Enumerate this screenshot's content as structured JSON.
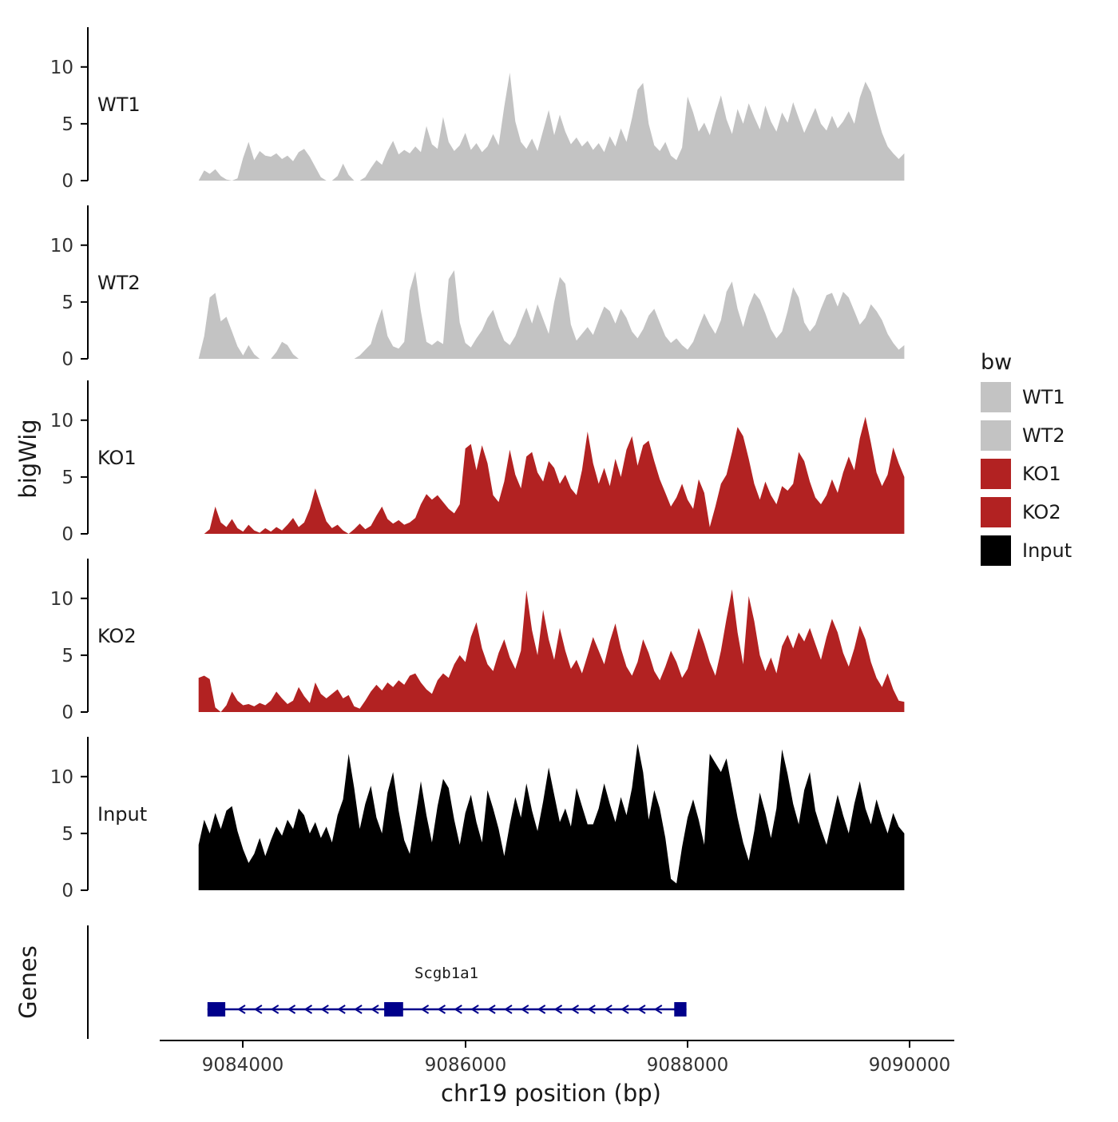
{
  "figure": {
    "x_axis_title": "chr19 position (bp)",
    "y_axis_title": "bigWig",
    "genes_axis_title": "Genes",
    "x_tick_labels": [
      "9084000",
      "9086000",
      "9088000",
      "9090000"
    ],
    "y_tick_labels": [
      "0",
      "5",
      "10"
    ]
  },
  "legend": {
    "title": "bw",
    "items": [
      {
        "label": "WT1",
        "color": "#C3C3C3"
      },
      {
        "label": "WT2",
        "color": "#C3C3C3"
      },
      {
        "label": "KO1",
        "color": "#B22222"
      },
      {
        "label": "KO2",
        "color": "#B22222"
      },
      {
        "label": "Input",
        "color": "#000000"
      }
    ]
  },
  "gene": {
    "name": "Scgb1a1",
    "color": "#00008B",
    "strand": "-",
    "start": 9083680,
    "end": 9087990,
    "exons": [
      [
        9083680,
        9083840
      ],
      [
        9085270,
        9085440
      ],
      [
        9087880,
        9087990
      ]
    ]
  },
  "chart_data": {
    "type": "area",
    "title": "",
    "xlabel": "chr19 position (bp)",
    "ylabel": "bigWig",
    "xlim": [
      9083250,
      9090400
    ],
    "x_tick_values": [
      9084000,
      9086000,
      9088000,
      9090000
    ],
    "ylim": [
      0,
      13.5
    ],
    "y_tick_values": [
      0,
      5,
      10
    ],
    "x_start": 9083600,
    "x_step": 50,
    "series": [
      {
        "name": "WT1",
        "color": "#C3C3C3",
        "values": [
          0,
          0.9,
          0.6,
          1.0,
          0.4,
          0.1,
          0,
          0.2,
          2.0,
          3.4,
          1.8,
          2.6,
          2.2,
          2.1,
          2.4,
          1.9,
          2.2,
          1.7,
          2.5,
          2.8,
          2.1,
          1.2,
          0.3,
          0,
          0,
          0.4,
          1.5,
          0.5,
          0,
          0,
          0.3,
          1.1,
          1.8,
          1.4,
          2.6,
          3.5,
          2.3,
          2.7,
          2.4,
          3.0,
          2.5,
          4.8,
          3.2,
          2.8,
          5.6,
          3.4,
          2.6,
          3.1,
          4.2,
          2.7,
          3.3,
          2.5,
          3.0,
          4.1,
          3.1,
          6.5,
          9.5,
          5.2,
          3.4,
          2.8,
          3.7,
          2.6,
          4.4,
          6.2,
          4.0,
          5.8,
          4.3,
          3.2,
          3.8,
          3.0,
          3.5,
          2.7,
          3.3,
          2.5,
          3.9,
          3.0,
          4.6,
          3.4,
          5.5,
          8.0,
          8.6,
          5.0,
          3.1,
          2.6,
          3.4,
          2.2,
          1.8,
          2.9,
          7.4,
          6.0,
          4.3,
          5.1,
          4.0,
          5.9,
          7.5,
          5.4,
          4.1,
          6.3,
          5.0,
          6.8,
          5.6,
          4.5,
          6.6,
          5.2,
          4.3,
          6.0,
          5.1,
          6.9,
          5.5,
          4.2,
          5.3,
          6.4,
          5.0,
          4.4,
          5.7,
          4.6,
          5.2,
          6.1,
          5.0,
          7.3,
          8.7,
          7.8,
          5.9,
          4.2,
          3.0,
          2.4,
          1.9,
          2.4
        ]
      },
      {
        "name": "WT2",
        "color": "#C3C3C3",
        "values": [
          0,
          2.0,
          5.4,
          5.8,
          3.3,
          3.7,
          2.4,
          1.1,
          0.3,
          1.2,
          0.4,
          0,
          0,
          0,
          0.6,
          1.5,
          1.2,
          0.4,
          0,
          0,
          0,
          0,
          0,
          0,
          0,
          0,
          0,
          0,
          0,
          0.3,
          0.8,
          1.3,
          3.0,
          4.4,
          2.0,
          1.1,
          0.9,
          1.5,
          6.0,
          7.7,
          4.2,
          1.5,
          1.2,
          1.6,
          1.3,
          7.0,
          7.8,
          3.2,
          1.4,
          1.0,
          1.8,
          2.5,
          3.6,
          4.3,
          2.8,
          1.6,
          1.2,
          2.0,
          3.3,
          4.5,
          3.1,
          4.8,
          3.5,
          2.2,
          5.0,
          7.2,
          6.6,
          3.0,
          1.6,
          2.2,
          2.8,
          2.1,
          3.4,
          4.6,
          4.2,
          3.1,
          4.4,
          3.6,
          2.4,
          1.8,
          2.6,
          3.8,
          4.4,
          3.2,
          2.0,
          1.4,
          1.8,
          1.2,
          0.8,
          1.5,
          2.8,
          4.0,
          3.0,
          2.2,
          3.4,
          5.9,
          6.8,
          4.4,
          2.8,
          4.6,
          5.8,
          5.2,
          4.0,
          2.6,
          1.8,
          2.4,
          4.2,
          6.3,
          5.4,
          3.2,
          2.4,
          3.0,
          4.4,
          5.6,
          5.8,
          4.6,
          5.9,
          5.4,
          4.2,
          3.0,
          3.6,
          4.8,
          4.2,
          3.4,
          2.2,
          1.4,
          0.8,
          1.2
        ]
      },
      {
        "name": "KO1",
        "color": "#B22222",
        "values": [
          0,
          0,
          0.4,
          2.4,
          1.0,
          0.6,
          1.3,
          0.5,
          0.2,
          0.8,
          0.3,
          0.1,
          0.5,
          0.2,
          0.6,
          0.3,
          0.8,
          1.4,
          0.6,
          1.0,
          2.2,
          4.0,
          2.5,
          1.1,
          0.5,
          0.8,
          0.3,
          0,
          0.4,
          0.9,
          0.4,
          0.7,
          1.6,
          2.4,
          1.3,
          0.9,
          1.2,
          0.8,
          1.0,
          1.4,
          2.6,
          3.5,
          3.0,
          3.4,
          2.8,
          2.2,
          1.8,
          2.6,
          7.5,
          7.9,
          5.6,
          7.8,
          6.2,
          3.4,
          2.8,
          4.6,
          7.4,
          5.2,
          4.0,
          6.8,
          7.2,
          5.4,
          4.6,
          6.4,
          5.8,
          4.4,
          5.2,
          4.0,
          3.4,
          5.6,
          9.0,
          6.2,
          4.4,
          5.8,
          4.2,
          6.6,
          5.0,
          7.4,
          8.6,
          6.0,
          7.8,
          8.2,
          6.4,
          4.8,
          3.6,
          2.4,
          3.2,
          4.4,
          3.0,
          2.2,
          4.8,
          3.6,
          0.6,
          2.4,
          4.4,
          5.2,
          7.2,
          9.4,
          8.6,
          6.6,
          4.4,
          3.0,
          4.6,
          3.4,
          2.6,
          4.2,
          3.8,
          4.4,
          7.2,
          6.4,
          4.6,
          3.2,
          2.6,
          3.4,
          4.8,
          3.6,
          5.4,
          6.8,
          5.6,
          8.4,
          10.3,
          8.0,
          5.4,
          4.2,
          5.2,
          7.6,
          6.2,
          5.0
        ]
      },
      {
        "name": "KO2",
        "color": "#B22222",
        "values": [
          3.0,
          3.2,
          2.9,
          0.4,
          0,
          0.6,
          1.8,
          1.0,
          0.6,
          0.7,
          0.5,
          0.8,
          0.6,
          1.0,
          1.8,
          1.2,
          0.7,
          1.0,
          2.2,
          1.4,
          0.8,
          2.6,
          1.6,
          1.2,
          1.6,
          2.0,
          1.2,
          1.5,
          0.5,
          0.3,
          1.0,
          1.8,
          2.4,
          1.9,
          2.6,
          2.2,
          2.8,
          2.4,
          3.2,
          3.4,
          2.6,
          2.0,
          1.6,
          2.8,
          3.4,
          3.0,
          4.2,
          5.0,
          4.4,
          6.6,
          7.9,
          5.6,
          4.2,
          3.6,
          5.2,
          6.4,
          4.8,
          3.8,
          5.4,
          10.7,
          7.2,
          5.0,
          9.0,
          6.4,
          4.6,
          7.4,
          5.4,
          3.8,
          4.6,
          3.4,
          5.0,
          6.6,
          5.4,
          4.2,
          6.2,
          7.8,
          5.6,
          4.0,
          3.2,
          4.4,
          6.4,
          5.2,
          3.6,
          2.8,
          4.0,
          5.4,
          4.4,
          3.0,
          3.8,
          5.6,
          7.4,
          6.0,
          4.4,
          3.2,
          5.4,
          8.2,
          10.8,
          7.0,
          4.2,
          10.2,
          8.0,
          5.0,
          3.6,
          4.8,
          3.4,
          5.8,
          6.8,
          5.6,
          7.0,
          6.2,
          7.4,
          6.0,
          4.6,
          6.6,
          8.2,
          7.0,
          5.2,
          4.0,
          5.6,
          7.6,
          6.4,
          4.4,
          3.0,
          2.2,
          3.4,
          2.0,
          1.0,
          0.9
        ]
      },
      {
        "name": "Input",
        "color": "#000000",
        "values": [
          4.0,
          6.2,
          5.0,
          6.8,
          5.4,
          7.0,
          7.4,
          5.2,
          3.6,
          2.4,
          3.2,
          4.6,
          3.0,
          4.4,
          5.6,
          4.8,
          6.2,
          5.4,
          7.2,
          6.6,
          5.0,
          6.0,
          4.6,
          5.6,
          4.2,
          6.6,
          8.0,
          12.0,
          9.0,
          5.4,
          7.6,
          9.2,
          6.4,
          5.0,
          8.6,
          10.4,
          7.0,
          4.4,
          3.2,
          6.4,
          9.6,
          6.6,
          4.2,
          7.4,
          9.8,
          9.0,
          6.2,
          4.0,
          6.8,
          8.4,
          6.0,
          4.2,
          8.8,
          7.2,
          5.4,
          3.0,
          5.8,
          8.2,
          6.4,
          9.4,
          7.0,
          5.2,
          7.8,
          10.8,
          8.4,
          6.0,
          7.2,
          5.6,
          9.0,
          7.4,
          5.8,
          5.8,
          7.2,
          9.4,
          7.6,
          6.0,
          8.2,
          6.6,
          9.0,
          12.9,
          10.4,
          6.2,
          8.8,
          7.2,
          4.6,
          1.0,
          0.6,
          3.8,
          6.4,
          8.0,
          6.2,
          4.0,
          12.0,
          11.2,
          10.4,
          11.6,
          9.0,
          6.4,
          4.2,
          2.6,
          5.2,
          8.6,
          6.8,
          4.6,
          7.2,
          12.4,
          10.2,
          7.6,
          5.8,
          8.8,
          10.4,
          7.0,
          5.4,
          4.0,
          6.2,
          8.4,
          6.6,
          5.0,
          7.6,
          9.6,
          7.2,
          5.8,
          8.0,
          6.4,
          5.0,
          6.8,
          5.6,
          5.0
        ]
      }
    ]
  }
}
